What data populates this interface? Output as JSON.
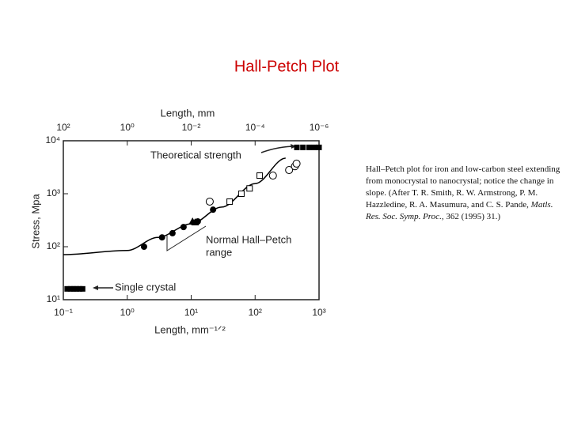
{
  "slide": {
    "title": "Hall-Petch Plot",
    "title_color": "#cc0000",
    "caption": [
      {
        "text": "Hall–Petch plot for iron and low-carbon steel extending from monocrystal to nanocrystal; notice the change in slope. (After T. R. Smith, R. W. Armstrong, P. M. Hazzledine, R. A. Masumura, and C. S. Pande, "
      },
      {
        "text": "Matls. Res. Soc. Symp. Proc.",
        "italic": true
      },
      {
        "text": ", 362 (1995) 31.)"
      }
    ]
  },
  "chart_data": {
    "type": "scatter",
    "x_label": "Length, mm⁻¹ᐟ²",
    "x2_label": "Length, mm",
    "y_label": "Stress, Mpa",
    "x_log": true,
    "y_log": true,
    "xlim": [
      0.1,
      1000
    ],
    "ylim": [
      10,
      10000
    ],
    "xticks": [
      {
        "value": 0.1,
        "label": "10⁻¹"
      },
      {
        "value": 1,
        "label": "10⁰"
      },
      {
        "value": 10,
        "label": "10¹"
      },
      {
        "value": 100,
        "label": "10²"
      },
      {
        "value": 1000,
        "label": "10³"
      }
    ],
    "x2_exponent": -0.5,
    "x2ticks": [
      {
        "value": 100,
        "label": "10²"
      },
      {
        "value": 1,
        "label": "10⁰"
      },
      {
        "value": 0.01,
        "label": "10⁻²"
      },
      {
        "value": 0.0001,
        "label": "10⁻⁴"
      },
      {
        "value": 1e-06,
        "label": "10⁻⁶"
      }
    ],
    "yticks": [
      {
        "value": 10,
        "label": "10¹"
      },
      {
        "value": 100,
        "label": "10²"
      },
      {
        "value": 1000,
        "label": "10³"
      },
      {
        "value": 10000,
        "label": "10⁴"
      }
    ],
    "series": [
      {
        "marker": "line",
        "color": "#000000",
        "x": [
          0.1,
          1,
          3,
          10,
          30,
          100,
          300
        ],
        "values": [
          71,
          85,
          150,
          270,
          560,
          1550,
          4700
        ]
      },
      {
        "marker": "square-filled",
        "color": "#000000",
        "x": [
          0.115,
          0.13,
          0.145,
          0.16,
          0.18,
          0.2
        ],
        "values": [
          16,
          16,
          16,
          16,
          16,
          16
        ]
      },
      {
        "marker": "square-filled",
        "color": "#000000",
        "x": [
          450,
          560,
          700,
          850,
          1000
        ],
        "values": [
          7500,
          7500,
          7500,
          7500,
          7500
        ]
      },
      {
        "marker": "circle-filled",
        "color": "#000000",
        "x": [
          1.83,
          3.5,
          5.1,
          7.6,
          12.7,
          22
        ],
        "values": [
          100,
          150,
          180,
          235,
          300,
          500
        ]
      },
      {
        "marker": "circle-open",
        "color": "#000000",
        "x": [
          19.5,
          190,
          340,
          420,
          445
        ],
        "values": [
          710,
          2200,
          2800,
          3300,
          3700
        ]
      },
      {
        "marker": "square-open",
        "color": "#000000",
        "x": [
          40,
          61,
          82,
          118
        ],
        "values": [
          710,
          1000,
          1260,
          2200
        ]
      },
      {
        "marker": "triangle-filled",
        "color": "#000000",
        "x": [
          10.5,
          11.5
        ],
        "values": [
          300,
          290
        ]
      }
    ],
    "annotations": [
      "Theoretical strength",
      "Normal Hall–Petch",
      "range",
      "Single crystal"
    ]
  }
}
